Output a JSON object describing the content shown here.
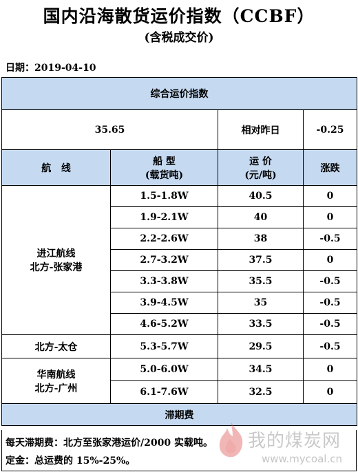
{
  "header": {
    "title": "国内沿海散货运价指数（CCBF）",
    "subtitle": "(含税成交价)",
    "date": "日期：2019-04-10"
  },
  "summary": {
    "heading": "综合运价指数",
    "index_value": "35.65",
    "change_label": "相对昨日",
    "change_value": "-0.25"
  },
  "columns": {
    "route_line1": "航",
    "route_line2": "线",
    "ship_line1": "船  型",
    "ship_line2": "(载货吨)",
    "price_line1": "运  价",
    "price_line2": "(元/吨)",
    "change": "涨跌"
  },
  "groups": [
    {
      "route_line1": "进江航线",
      "route_line2": "北方-张家港",
      "rows": [
        {
          "ship": "1.5-1.8W",
          "price": "40.5",
          "change": "0"
        },
        {
          "ship": "1.9-2.1W",
          "price": "40",
          "change": "0"
        },
        {
          "ship": "2.2-2.6W",
          "price": "38",
          "change": "-0.5"
        },
        {
          "ship": "2.7-3.2W",
          "price": "37.5",
          "change": "0"
        },
        {
          "ship": "3.3-3.8W",
          "price": "35.5",
          "change": "-0.5"
        },
        {
          "ship": "3.9-4.5W",
          "price": "35",
          "change": "-0.5"
        },
        {
          "ship": "4.6-5.2W",
          "price": "33.5",
          "change": "-0.5"
        }
      ]
    },
    {
      "route_line1": "北方-太仓",
      "route_line2": "",
      "rows": [
        {
          "ship": "5.3-5.7W",
          "price": "29.5",
          "change": "-0.5"
        }
      ]
    },
    {
      "route_line1": "华南航线",
      "route_line2": "北方-广州",
      "rows": [
        {
          "ship": "5.0-6.0W",
          "price": "34.5",
          "change": "0"
        },
        {
          "ship": "6.1-7.6W",
          "price": "32.5",
          "change": "0"
        }
      ]
    }
  ],
  "demurrage": {
    "heading": "滞期费",
    "line1": "每天滞期费：北方至张家港运价/2000 实载吨。",
    "line2": "定金：总运费的 15%-25%。"
  },
  "watermark": {
    "brand": "我的煤炭网",
    "url": "www.mycoal.cn"
  },
  "colors": {
    "header_fill": "#c5d9f1"
  }
}
